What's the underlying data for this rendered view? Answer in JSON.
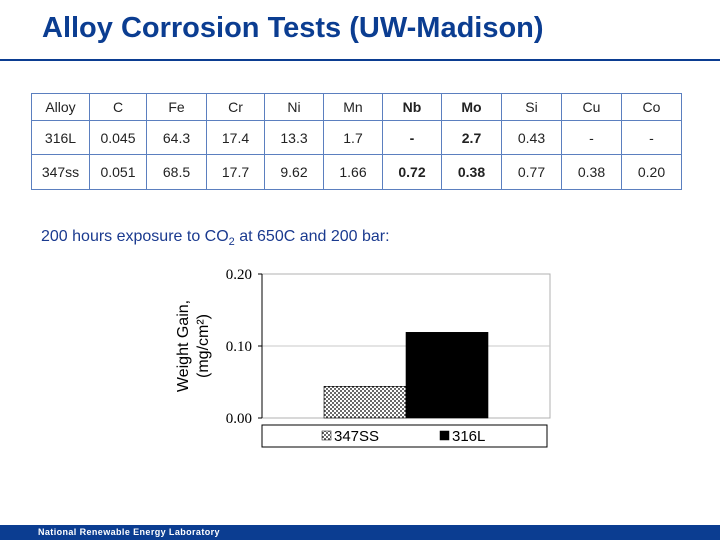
{
  "slide": {
    "title": "Alloy Corrosion Tests (UW-Madison)",
    "subtitle_prefix": "200 hours exposure to CO",
    "subtitle_sub": "2",
    "subtitle_suffix": " at 650C and 200 bar:",
    "footer": "National Renewable Energy Laboratory",
    "accent_color": "#0b3d91"
  },
  "table": {
    "headers": [
      "Alloy",
      "C",
      "Fe",
      "Cr",
      "Ni",
      "Mn",
      "Nb",
      "Mo",
      "Si",
      "Cu",
      "Co"
    ],
    "bold_headers": [
      "Nb",
      "Mo"
    ],
    "rows": [
      {
        "cells": [
          "316L",
          "0.045",
          "64.3",
          "17.4",
          "13.3",
          "1.7",
          "-",
          "2.7",
          "0.43",
          "-",
          "-"
        ],
        "bold_columns": [
          "Nb",
          "Mo"
        ]
      },
      {
        "cells": [
          "347ss",
          "0.051",
          "68.5",
          "17.7",
          "9.62",
          "1.66",
          "0.72",
          "0.38",
          "0.77",
          "0.38",
          "0.20"
        ],
        "bold_columns": [
          "Nb",
          "Mo"
        ]
      }
    ]
  },
  "chart_data": {
    "type": "bar",
    "title": "",
    "xlabel": "",
    "ylabel": "Weight Gain, (mg/cm²)",
    "ylabel_lines": [
      "Weight Gain,",
      "(mg/cm²)"
    ],
    "ylim": [
      0,
      0.2
    ],
    "yticks": [
      "0.00",
      "0.10",
      "0.20"
    ],
    "ytick_values": [
      0,
      0.1,
      0.2
    ],
    "grid": true,
    "legend_position": "bottom",
    "series": [
      {
        "name": "347SS",
        "value": 0.044,
        "fill": "dotted",
        "color": "#000000"
      },
      {
        "name": "316L",
        "value": 0.119,
        "fill": "solid",
        "color": "#000000"
      }
    ]
  }
}
